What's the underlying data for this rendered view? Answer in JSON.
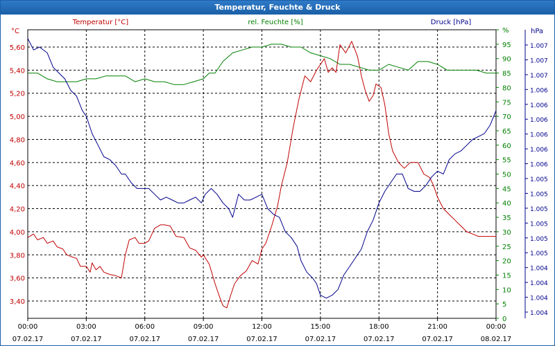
{
  "window": {
    "title": "Temperatur, Feuchte & Druck"
  },
  "chart_data": {
    "type": "line",
    "title": "Temperatur, Feuchte & Druck",
    "grid": true,
    "x_ticks": [
      {
        "time": "00:00",
        "date": "07.02.17"
      },
      {
        "time": "03:00",
        "date": "07.02.17"
      },
      {
        "time": "06:00",
        "date": "07.02.17"
      },
      {
        "time": "09:00",
        "date": "07.02.17"
      },
      {
        "time": "12:00",
        "date": "07.02.17"
      },
      {
        "time": "15:00",
        "date": "07.02.17"
      },
      {
        "time": "18:00",
        "date": "07.02.17"
      },
      {
        "time": "21:00",
        "date": "07.02.17"
      },
      {
        "time": "00:00",
        "date": "08.02.17"
      }
    ],
    "xlim": [
      0,
      24
    ],
    "axes": {
      "temperature": {
        "legend": "Temperatur [°C]",
        "unit": "°C",
        "color": "#c00000",
        "ylim": [
          3.25,
          5.75
        ],
        "ticks": [
          "3,40",
          "3,60",
          "3,80",
          "4,00",
          "4,20",
          "4,40",
          "4,60",
          "4,80",
          "5,00",
          "5,20",
          "5,40",
          "5,60"
        ]
      },
      "humidity": {
        "legend": "rel. Feuchte [%]",
        "unit": "%",
        "color": "#008000",
        "ylim": [
          0,
          100
        ],
        "ticks": [
          "0",
          "5",
          "10",
          "15",
          "20",
          "25",
          "30",
          "35",
          "40",
          "45",
          "50",
          "55",
          "60",
          "65",
          "70",
          "75",
          "80",
          "85",
          "90",
          "95",
          "%"
        ]
      },
      "pressure": {
        "legend": "Druck [hPa]",
        "unit": "hPa",
        "color": "#00008b",
        "ylim": [
          0,
          100
        ],
        "ticks": [
          "1.004",
          "1.004",
          "1.004",
          "1.004",
          "1.005",
          "1.005",
          "1.005",
          "1.005",
          "1.005",
          "1.005",
          "1.006",
          "1.006",
          "1.006",
          "1.006",
          "1.006",
          "1.006",
          "1.007",
          "1.007",
          "1.007"
        ]
      }
    },
    "series": [
      {
        "name": "Temperatur [°C]",
        "axis": "temperature",
        "color": "#c00000",
        "x": [
          0,
          0.3,
          0.5,
          0.8,
          1.0,
          1.3,
          1.5,
          1.8,
          2.0,
          2.3,
          2.5,
          2.7,
          3.0,
          3.2,
          3.3,
          3.5,
          3.7,
          3.9,
          4.2,
          4.5,
          4.8,
          5.0,
          5.2,
          5.5,
          5.7,
          6.0,
          6.2,
          6.5,
          6.8,
          7.0,
          7.3,
          7.6,
          8.0,
          8.3,
          8.6,
          8.9,
          9.0,
          9.3,
          9.6,
          9.8,
          10.0,
          10.2,
          10.4,
          10.6,
          10.9,
          11.2,
          11.5,
          11.8,
          12.0,
          12.2,
          12.5,
          12.8,
          13.0,
          13.3,
          13.6,
          13.9,
          14.2,
          14.5,
          14.8,
          15.0,
          15.2,
          15.4,
          15.6,
          15.8,
          16.0,
          16.3,
          16.6,
          16.9,
          17.1,
          17.3,
          17.5,
          17.7,
          17.85,
          18.1,
          18.3,
          18.5,
          18.7,
          19.0,
          19.3,
          19.6,
          20.0,
          20.3,
          20.6,
          20.8,
          21.0,
          21.3,
          21.6,
          21.9,
          22.2,
          22.5,
          22.8,
          23.1,
          23.4,
          23.7,
          24.0
        ],
        "y": [
          3.95,
          3.98,
          3.93,
          3.95,
          3.9,
          3.92,
          3.87,
          3.85,
          3.8,
          3.78,
          3.77,
          3.7,
          3.7,
          3.65,
          3.73,
          3.67,
          3.7,
          3.65,
          3.63,
          3.62,
          3.6,
          3.8,
          3.93,
          3.95,
          3.9,
          3.9,
          3.92,
          4.03,
          4.06,
          4.06,
          4.05,
          3.96,
          3.95,
          3.86,
          3.84,
          3.78,
          3.8,
          3.72,
          3.55,
          3.45,
          3.36,
          3.34,
          3.45,
          3.55,
          3.62,
          3.66,
          3.75,
          3.72,
          3.85,
          3.9,
          4.05,
          4.22,
          4.4,
          4.6,
          4.9,
          5.15,
          5.35,
          5.3,
          5.4,
          5.45,
          5.5,
          5.38,
          5.42,
          5.38,
          5.62,
          5.55,
          5.65,
          5.52,
          5.35,
          5.22,
          5.13,
          5.18,
          5.28,
          5.25,
          5.1,
          4.85,
          4.7,
          4.6,
          4.55,
          4.6,
          4.6,
          4.5,
          4.47,
          4.4,
          4.3,
          4.2,
          4.15,
          4.1,
          4.05,
          4.0,
          3.98,
          3.96,
          3.96,
          3.96,
          3.96
        ]
      },
      {
        "name": "rel. Feuchte [%]",
        "axis": "humidity",
        "color": "#008000",
        "x": [
          0,
          0.5,
          1.0,
          1.5,
          2.0,
          2.5,
          3.0,
          3.5,
          4.0,
          4.5,
          5.0,
          5.5,
          6.0,
          6.5,
          7.0,
          7.5,
          8.0,
          8.5,
          9.0,
          9.3,
          9.6,
          10.0,
          10.5,
          11.0,
          11.5,
          12.0,
          12.5,
          13.0,
          13.5,
          14.0,
          14.5,
          15.0,
          15.5,
          16.0,
          16.5,
          17.0,
          17.5,
          18.0,
          18.5,
          19.0,
          19.5,
          20.0,
          20.5,
          21.0,
          21.5,
          22.0,
          22.5,
          23.0,
          23.5,
          24.0
        ],
        "y": [
          85,
          85,
          83,
          82,
          82,
          82,
          83,
          83,
          84,
          84,
          84,
          82,
          83,
          82,
          82,
          81,
          81,
          82,
          83,
          85,
          85,
          89,
          92,
          93,
          94,
          94,
          95,
          95,
          94,
          94,
          92,
          91,
          90,
          88,
          88,
          87,
          86,
          86,
          88,
          87,
          86,
          89,
          89,
          88,
          86,
          86,
          86,
          86,
          85,
          85
        ]
      },
      {
        "name": "Druck [hPa]",
        "axis": "pressure",
        "color": "#00008b",
        "x": [
          0,
          0.3,
          0.6,
          1.0,
          1.3,
          1.6,
          1.9,
          2.2,
          2.5,
          2.8,
          3.0,
          3.3,
          3.6,
          3.9,
          4.2,
          4.5,
          4.8,
          5.0,
          5.3,
          5.6,
          5.9,
          6.2,
          6.5,
          6.8,
          7.1,
          7.4,
          7.7,
          8.0,
          8.3,
          8.6,
          8.9,
          9.1,
          9.4,
          9.7,
          10.0,
          10.3,
          10.5,
          10.8,
          11.1,
          11.4,
          11.7,
          12.0,
          12.3,
          12.6,
          12.9,
          13.2,
          13.5,
          13.8,
          14.0,
          14.3,
          14.6,
          14.8,
          15.0,
          15.3,
          15.6,
          15.9,
          16.2,
          16.5,
          16.8,
          17.1,
          17.4,
          17.7,
          18.0,
          18.3,
          18.6,
          18.9,
          19.2,
          19.5,
          19.8,
          20.1,
          20.4,
          20.7,
          21.0,
          21.3,
          21.6,
          21.9,
          22.2,
          22.5,
          22.8,
          23.1,
          23.4,
          23.7,
          24.0
        ],
        "y": [
          97,
          93,
          94,
          92,
          87,
          85,
          83,
          79,
          77,
          72,
          70,
          64,
          60,
          56,
          55,
          53,
          50,
          50,
          47,
          45,
          45,
          45,
          43,
          41,
          42,
          41,
          40,
          40,
          41,
          42,
          40,
          43,
          45,
          43,
          40,
          38,
          35,
          43,
          41,
          41,
          42,
          43,
          38,
          36,
          35,
          30,
          28,
          25,
          20,
          16,
          14,
          12,
          8,
          7,
          8,
          10,
          15,
          18,
          21,
          24,
          30,
          34,
          40,
          44,
          47,
          50,
          50,
          45,
          44,
          44,
          46,
          49,
          51,
          50,
          55,
          57,
          58,
          60,
          62,
          63,
          64,
          67,
          72
        ]
      }
    ]
  }
}
